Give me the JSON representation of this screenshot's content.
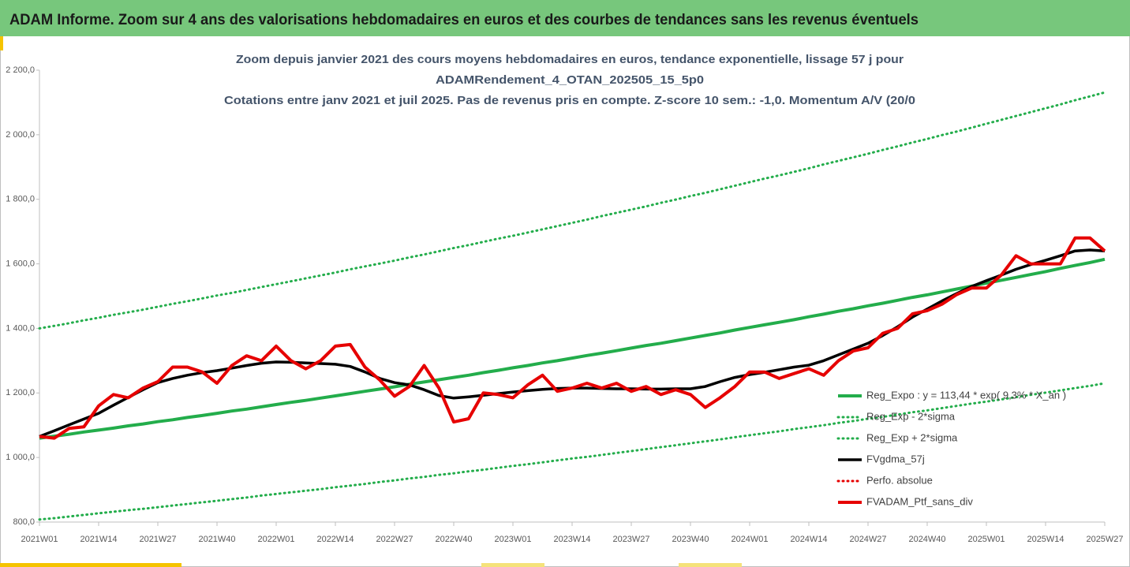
{
  "banner": "ADAM Informe. Zoom sur 4 ans des valorisations hebdomadaires en euros et des courbes de tendances sans les revenus éventuels",
  "chart_data": {
    "type": "line",
    "title": [
      "Zoom depuis janvier 2021 des cours moyens hebdomadaires  en euros, tendance exponentielle, lissage 57 j pour",
      "ADAMRendement_4_OTAN_202505_15_5p0",
      "Cotations entre janv 2021 et juil 2025. Pas de revenus pris en compte. Z-score 10 sem.: -1,0. Momentum A/V (20/0"
    ],
    "categories": [
      "2021W01",
      null,
      null,
      null,
      "2021W14",
      null,
      null,
      null,
      "2021W27",
      null,
      null,
      null,
      "2021W40",
      null,
      null,
      null,
      "2022W01",
      null,
      null,
      null,
      "2022W14",
      null,
      null,
      null,
      "2022W27",
      null,
      null,
      null,
      "2022W40",
      null,
      null,
      null,
      "2023W01",
      null,
      null,
      null,
      "2023W14",
      null,
      null,
      null,
      "2023W27",
      null,
      null,
      null,
      "2023W40",
      null,
      null,
      null,
      "2024W01",
      null,
      null,
      null,
      "2024W14",
      null,
      null,
      null,
      "2024W27",
      null,
      null,
      null,
      "2024W40",
      null,
      null,
      null,
      "2025W01",
      null,
      null,
      null,
      "2025W14",
      null,
      null,
      null,
      "2025W27"
    ],
    "ylim": [
      800,
      2200
    ],
    "yticks": [
      {
        "value": 800,
        "label": "800,0"
      },
      {
        "value": 1000,
        "label": "1 000,0"
      },
      {
        "value": 1200,
        "label": "1 200,0"
      },
      {
        "value": 1400,
        "label": "1 400,0"
      },
      {
        "value": 1600,
        "label": "1 600,0"
      },
      {
        "value": 1800,
        "label": "1 800,0"
      },
      {
        "value": 2000,
        "label": "2 000,0"
      },
      {
        "value": 2200,
        "label": "2 200,0"
      }
    ],
    "grid": false,
    "legend": "lower-right",
    "series": [
      {
        "name": "Reg_Expo : y = 113,44 * exp( 9,3% * X_an )",
        "color": "#23ad4b",
        "dash": "solid",
        "values": [
          1060,
          1066,
          1072,
          1079,
          1085,
          1091,
          1098,
          1104,
          1111,
          1117,
          1124,
          1130,
          1137,
          1144,
          1150,
          1157,
          1164,
          1171,
          1177,
          1184,
          1191,
          1198,
          1205,
          1212,
          1219,
          1227,
          1234,
          1241,
          1248,
          1255,
          1263,
          1270,
          1278,
          1285,
          1293,
          1300,
          1308,
          1316,
          1323,
          1331,
          1339,
          1347,
          1354,
          1362,
          1370,
          1378,
          1386,
          1395,
          1403,
          1411,
          1419,
          1427,
          1436,
          1444,
          1453,
          1461,
          1470,
          1478,
          1487,
          1496,
          1504,
          1513,
          1522,
          1531,
          1540,
          1549,
          1558,
          1567,
          1576,
          1586,
          1595,
          1604,
          1614
        ]
      },
      {
        "name": "Reg_Exp - 2*sigma",
        "color": "#23ad4b",
        "dash": "dotted",
        "values": [
          808,
          812,
          817,
          822,
          827,
          832,
          837,
          841,
          846,
          851,
          856,
          861,
          866,
          871,
          876,
          882,
          887,
          892,
          897,
          902,
          908,
          913,
          918,
          924,
          929,
          935,
          940,
          946,
          951,
          957,
          962,
          968,
          974,
          979,
          985,
          991,
          997,
          1002,
          1008,
          1014,
          1020,
          1026,
          1032,
          1038,
          1044,
          1050,
          1056,
          1063,
          1069,
          1075,
          1081,
          1088,
          1094,
          1100,
          1107,
          1113,
          1120,
          1126,
          1133,
          1140,
          1146,
          1153,
          1160,
          1167,
          1173,
          1180,
          1187,
          1194,
          1201,
          1208,
          1215,
          1222,
          1230
        ]
      },
      {
        "name": "Reg_Exp + 2*sigma",
        "color": "#23ad4b",
        "dash": "dotted",
        "values": [
          1400,
          1408,
          1416,
          1425,
          1433,
          1442,
          1450,
          1458,
          1467,
          1476,
          1484,
          1493,
          1502,
          1510,
          1519,
          1528,
          1537,
          1546,
          1555,
          1564,
          1573,
          1583,
          1592,
          1601,
          1610,
          1620,
          1629,
          1639,
          1649,
          1658,
          1668,
          1678,
          1687,
          1697,
          1707,
          1717,
          1727,
          1737,
          1748,
          1758,
          1768,
          1778,
          1789,
          1799,
          1810,
          1820,
          1831,
          1842,
          1853,
          1864,
          1874,
          1885,
          1896,
          1908,
          1919,
          1930,
          1941,
          1953,
          1964,
          1976,
          1987,
          1999,
          2010,
          2022,
          2034,
          2046,
          2058,
          2070,
          2082,
          2094,
          2107,
          2119,
          2131
        ]
      },
      {
        "name": "FVgdma_57j",
        "color": "#000000",
        "dash": "solid",
        "values": [
          1065,
          1083,
          1101,
          1119,
          1137,
          1162,
          1186,
          1210,
          1232,
          1245,
          1255,
          1263,
          1269,
          1277,
          1285,
          1292,
          1296,
          1295,
          1293,
          1291,
          1289,
          1282,
          1265,
          1245,
          1232,
          1225,
          1210,
          1192,
          1184,
          1188,
          1193,
          1198,
          1203,
          1207,
          1211,
          1214,
          1215,
          1215,
          1214,
          1213,
          1213,
          1212,
          1212,
          1213,
          1213,
          1220,
          1235,
          1248,
          1257,
          1264,
          1272,
          1280,
          1286,
          1300,
          1318,
          1336,
          1354,
          1378,
          1405,
          1435,
          1460,
          1485,
          1508,
          1530,
          1548,
          1565,
          1583,
          1598,
          1611,
          1625,
          1640,
          1643,
          1640
        ]
      },
      {
        "name": "Perfo. absolue",
        "color": "#e60000",
        "dash": "dotted"
      },
      {
        "name": "FVADAM_Ptf_sans_div",
        "color": "#e60000",
        "dash": "solid",
        "values": [
          1065,
          1060,
          1090,
          1095,
          1160,
          1195,
          1185,
          1215,
          1235,
          1280,
          1280,
          1265,
          1230,
          1285,
          1315,
          1300,
          1345,
          1300,
          1275,
          1300,
          1345,
          1350,
          1280,
          1240,
          1190,
          1220,
          1285,
          1215,
          1110,
          1120,
          1200,
          1195,
          1185,
          1225,
          1255,
          1205,
          1215,
          1230,
          1215,
          1230,
          1205,
          1220,
          1195,
          1210,
          1195,
          1155,
          1185,
          1220,
          1265,
          1265,
          1245,
          1260,
          1275,
          1255,
          1300,
          1330,
          1340,
          1385,
          1400,
          1445,
          1455,
          1475,
          1505,
          1525,
          1525,
          1565,
          1625,
          1600,
          1600,
          1600,
          1680,
          1680,
          1640
        ]
      }
    ]
  }
}
